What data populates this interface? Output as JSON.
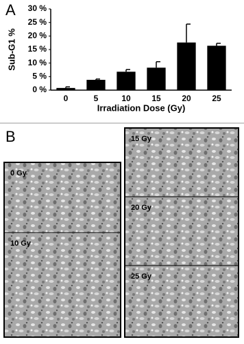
{
  "panels": {
    "a": "A",
    "b": "B"
  },
  "chart_data": {
    "type": "bar",
    "x_label": "Irradiation Dose (Gy)",
    "y_label": "Sub-G1 %",
    "categories": [
      "0",
      "5",
      "10",
      "15",
      "20",
      "25"
    ],
    "values": [
      0.8,
      3.8,
      6.8,
      8.3,
      17.6,
      16.4
    ],
    "errors": [
      0.4,
      0.3,
      0.8,
      2.2,
      6.8,
      0.9
    ],
    "color": "#000000",
    "ylim": [
      0,
      30
    ],
    "yticks": [
      {
        "value": 0,
        "label": "0 %"
      },
      {
        "value": 5,
        "label": "5 %"
      },
      {
        "value": 10,
        "label": "10 %"
      },
      {
        "value": 15,
        "label": "15 %"
      },
      {
        "value": 20,
        "label": "20 %"
      },
      {
        "value": 25,
        "label": "25 %"
      },
      {
        "value": 30,
        "label": "30 %"
      }
    ]
  },
  "images": [
    {
      "label": "0 Gy"
    },
    {
      "label": "10 Gy"
    },
    {
      "label": "15 Gy"
    },
    {
      "label": "20 Gy"
    },
    {
      "label": "25 Gy"
    }
  ]
}
